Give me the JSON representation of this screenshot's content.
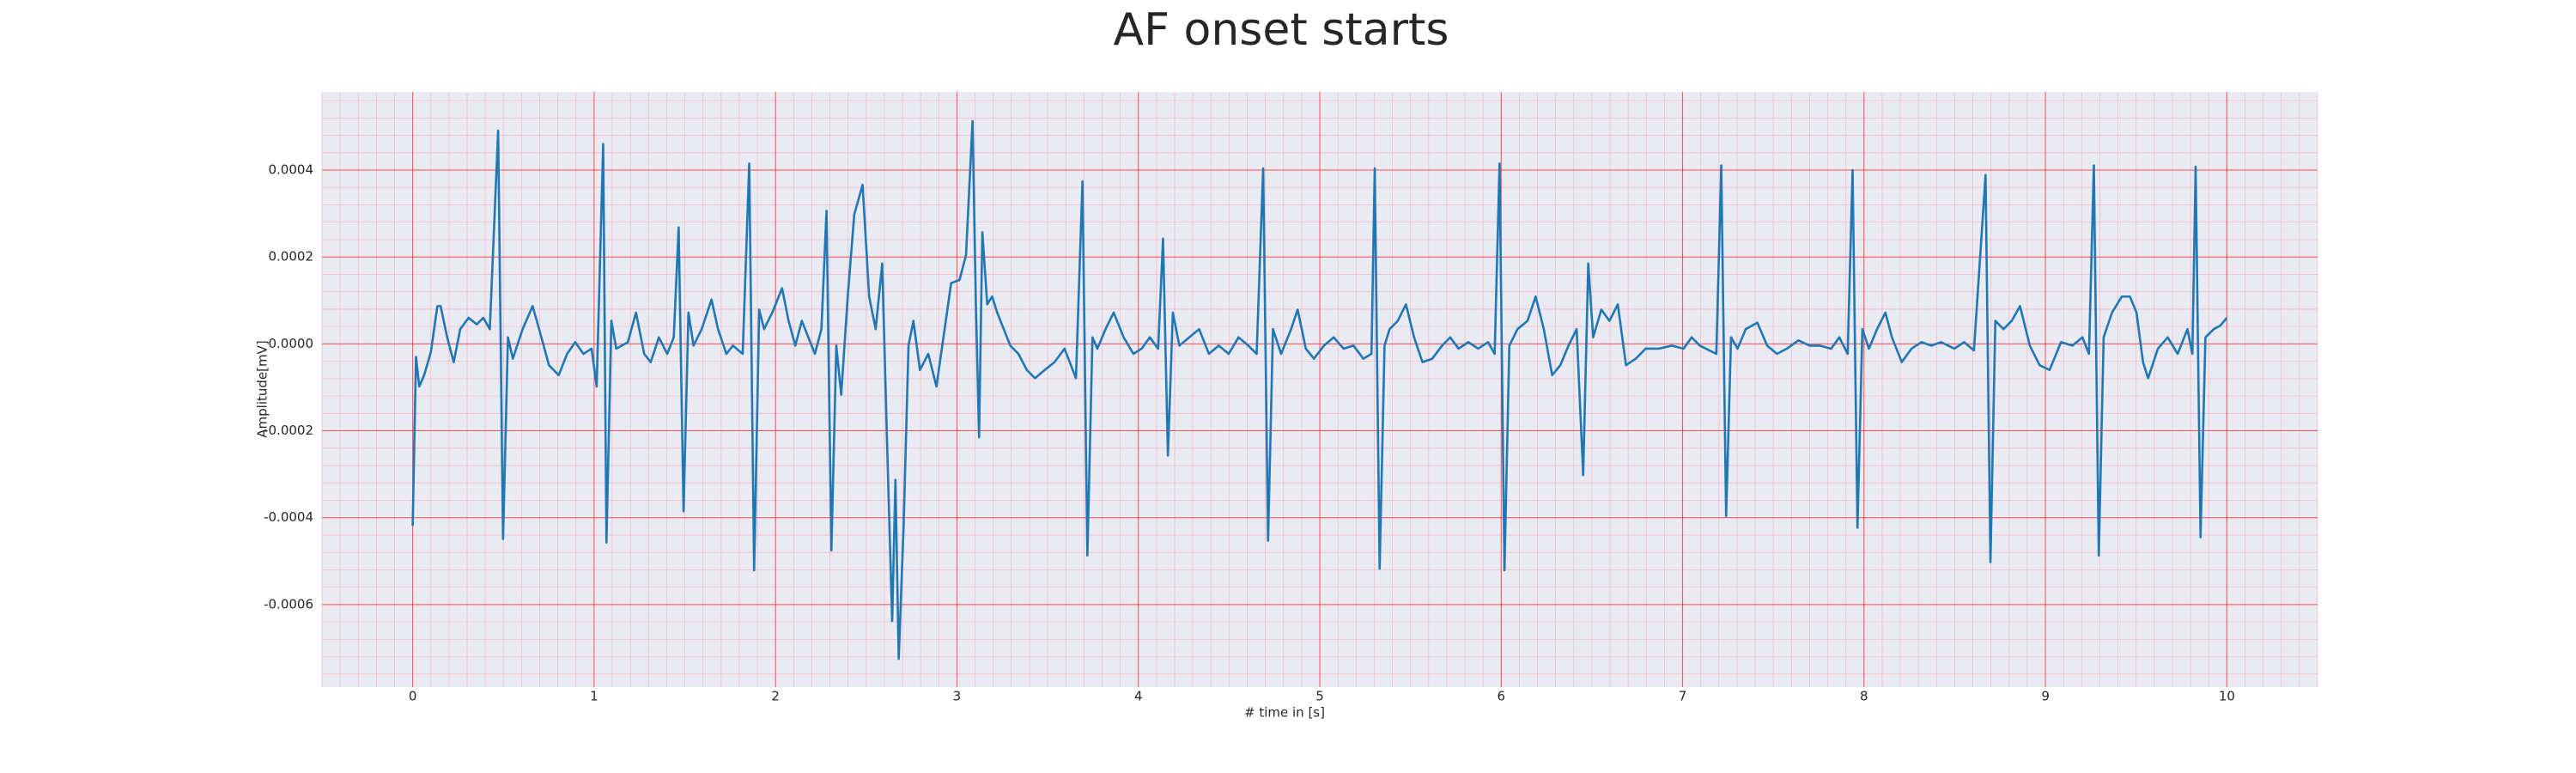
{
  "chart_data": {
    "type": "line",
    "title": "AF onset starts",
    "x_label": "# time in [s]",
    "y_label": "Amplitude[mV]",
    "color": "#1f77b4",
    "grid": true,
    "minor_grid": true,
    "grid_color": "#ff0000",
    "minor_grid_color": "#f4a6b4",
    "background": "#eaeaf2",
    "xlim": [
      -0.5,
      10.5
    ],
    "xticks": [
      0,
      1,
      2,
      3,
      4,
      5,
      6,
      7,
      8,
      9,
      10
    ],
    "ylim": [
      -0.00079,
      0.00058
    ],
    "yticks": [
      -0.0006,
      -0.0004,
      -0.0002,
      {
        "value": 0,
        "label": "0.0000"
      },
      0.0002,
      0.0004
    ],
    "x": [
      0,
      0.018,
      0.036,
      0.063,
      0.1,
      0.136,
      0.154,
      0.19,
      0.226,
      0.262,
      0.308,
      0.353,
      0.389,
      0.425,
      0.471,
      0.498,
      0.525,
      0.552,
      0.606,
      0.661,
      0.697,
      0.751,
      0.805,
      0.851,
      0.896,
      0.941,
      0.986,
      1.014,
      1.05,
      1.068,
      1.095,
      1.122,
      1.186,
      1.231,
      1.276,
      1.312,
      1.357,
      1.403,
      1.439,
      1.466,
      1.493,
      1.52,
      1.548,
      1.593,
      1.647,
      1.683,
      1.729,
      1.765,
      1.819,
      1.855,
      1.882,
      1.91,
      1.937,
      1.982,
      2.036,
      2.072,
      2.109,
      2.145,
      2.181,
      2.217,
      2.253,
      2.281,
      2.308,
      2.335,
      2.362,
      2.398,
      2.434,
      2.48,
      2.516,
      2.552,
      2.588,
      2.615,
      2.643,
      2.661,
      2.679,
      2.706,
      2.733,
      2.76,
      2.796,
      2.842,
      2.887,
      2.932,
      2.968,
      3.014,
      3.05,
      3.086,
      3.104,
      3.122,
      3.14,
      3.167,
      3.194,
      3.222,
      3.258,
      3.294,
      3.339,
      3.385,
      3.43,
      3.484,
      3.538,
      3.593,
      3.656,
      3.692,
      3.719,
      3.747,
      3.774,
      3.819,
      3.864,
      3.919,
      3.973,
      4.018,
      4.063,
      4.109,
      4.136,
      4.163,
      4.19,
      4.226,
      4.281,
      4.335,
      4.389,
      4.443,
      4.498,
      4.552,
      4.606,
      4.652,
      4.688,
      4.715,
      4.742,
      4.787,
      4.842,
      4.878,
      4.923,
      4.968,
      5.023,
      5.077,
      5.131,
      5.186,
      5.24,
      5.285,
      5.303,
      5.33,
      5.357,
      5.385,
      5.43,
      5.475,
      5.52,
      5.566,
      5.62,
      5.674,
      5.719,
      5.765,
      5.819,
      5.873,
      5.928,
      5.964,
      5.991,
      6.018,
      6.045,
      6.09,
      6.145,
      6.19,
      6.235,
      6.281,
      6.326,
      6.371,
      6.416,
      6.452,
      6.48,
      6.507,
      6.552,
      6.597,
      6.643,
      6.688,
      6.742,
      6.796,
      6.869,
      6.941,
      7.005,
      7.05,
      7.095,
      7.186,
      7.213,
      7.24,
      7.267,
      7.303,
      7.348,
      7.412,
      7.466,
      7.52,
      7.575,
      7.638,
      7.701,
      7.756,
      7.819,
      7.864,
      7.91,
      7.937,
      7.964,
      7.991,
      8.027,
      8.072,
      8.118,
      8.154,
      8.208,
      8.262,
      8.317,
      8.371,
      8.425,
      8.498,
      8.552,
      8.606,
      8.67,
      8.697,
      8.724,
      8.769,
      8.814,
      8.86,
      8.914,
      8.968,
      9.023,
      9.086,
      9.149,
      9.204,
      9.24,
      9.267,
      9.294,
      9.321,
      9.367,
      9.421,
      9.466,
      9.502,
      9.538,
      9.566,
      9.62,
      9.674,
      9.729,
      9.783,
      9.81,
      9.828,
      9.855,
      9.882,
      9.928,
      9.964,
      10
    ],
    "values": [
      -0.000419,
      -3e-05,
      -9.8e-05,
      -7.2e-05,
      -1.9e-05,
      8.7e-05,
      8.7e-05,
      1.5e-05,
      -4.2e-05,
      3.4e-05,
      6e-05,
      4.5e-05,
      6e-05,
      3.4e-05,
      0.000491,
      -0.000449,
      1.5e-05,
      -3.4e-05,
      3.4e-05,
      8.7e-05,
      3.4e-05,
      -4.9e-05,
      -7.2e-05,
      -2.3e-05,
      4e-06,
      -2.3e-05,
      -1.1e-05,
      -9.8e-05,
      0.00046,
      -0.000457,
      5.3e-05,
      -1.1e-05,
      4e-06,
      7.2e-05,
      -2.3e-05,
      -4.2e-05,
      1.5e-05,
      -2.3e-05,
      1.5e-05,
      0.000268,
      -0.000385,
      7.2e-05,
      -4e-06,
      3.4e-05,
      0.000102,
      3.4e-05,
      -2.3e-05,
      -4e-06,
      -2.3e-05,
      0.000415,
      -0.000521,
      7.9e-05,
      3.4e-05,
      7.2e-05,
      0.000128,
      5.3e-05,
      -4e-06,
      5.3e-05,
      1.5e-05,
      -2.3e-05,
      3.4e-05,
      0.000306,
      -0.000475,
      -4e-06,
      -0.000117,
      0.000109,
      0.000298,
      0.000366,
      0.000109,
      3.4e-05,
      0.000185,
      -0.00023,
      -0.000638,
      -0.000313,
      -0.000725,
      -0.000419,
      -4e-06,
      5.3e-05,
      -6e-05,
      -2.3e-05,
      -9.8e-05,
      3.4e-05,
      0.00014,
      0.000147,
      0.000204,
      0.000513,
      9.8e-05,
      -0.000215,
      0.000257,
      9.1e-05,
      0.000109,
      7.2e-05,
      3.4e-05,
      -4e-06,
      -2.3e-05,
      -6e-05,
      -7.9e-05,
      -6e-05,
      -4.2e-05,
      -1.1e-05,
      -7.9e-05,
      0.000374,
      -0.000487,
      1.5e-05,
      -1.1e-05,
      3.4e-05,
      7.2e-05,
      1.5e-05,
      -2.3e-05,
      -1.1e-05,
      1.5e-05,
      -1.1e-05,
      0.000242,
      -0.000257,
      7.2e-05,
      -4e-06,
      1.5e-05,
      3.4e-05,
      -2.3e-05,
      -4e-06,
      -2.3e-05,
      1.5e-05,
      -4e-06,
      -2.3e-05,
      0.000404,
      -0.000453,
      3.4e-05,
      -2.3e-05,
      3.4e-05,
      7.9e-05,
      -1.1e-05,
      -3.4e-05,
      -4e-06,
      1.5e-05,
      -1.1e-05,
      -4e-06,
      -3.4e-05,
      -2.3e-05,
      0.000404,
      -0.000517,
      -4e-06,
      3.4e-05,
      5.3e-05,
      9.1e-05,
      1.5e-05,
      -4.2e-05,
      -3.4e-05,
      -4e-06,
      1.5e-05,
      -1.1e-05,
      4e-06,
      -1.1e-05,
      4e-06,
      -2.3e-05,
      0.000415,
      -0.000521,
      -4e-06,
      3.4e-05,
      5.3e-05,
      0.000109,
      3.4e-05,
      -7.2e-05,
      -4.9e-05,
      -4e-06,
      3.4e-05,
      -0.000302,
      0.000185,
      1.5e-05,
      7.9e-05,
      5.3e-05,
      9.1e-05,
      -4.9e-05,
      -3.4e-05,
      -1.1e-05,
      -1.1e-05,
      -4e-06,
      -1.1e-05,
      1.5e-05,
      -4e-06,
      -2.3e-05,
      0.000411,
      -0.000396,
      1.5e-05,
      -1.1e-05,
      3.4e-05,
      4.9e-05,
      -4e-06,
      -2.3e-05,
      -1.1e-05,
      8e-06,
      -4e-06,
      -4e-06,
      -1.1e-05,
      1.5e-05,
      -2.3e-05,
      0.0004,
      -0.000423,
      3.4e-05,
      -1.1e-05,
      3.4e-05,
      7.2e-05,
      1.5e-05,
      -4.2e-05,
      -1.1e-05,
      4e-06,
      -4e-06,
      4e-06,
      -1.1e-05,
      4e-06,
      -1.5e-05,
      0.000389,
      -0.000502,
      5.3e-05,
      3.4e-05,
      5.3e-05,
      8.7e-05,
      -4e-06,
      -4.9e-05,
      -6e-05,
      4e-06,
      -4e-06,
      1.5e-05,
      -2.3e-05,
      0.000411,
      -0.000487,
      1.5e-05,
      7.2e-05,
      0.000109,
      0.000109,
      7.2e-05,
      -4.2e-05,
      -7.9e-05,
      -1.1e-05,
      1.5e-05,
      -2.3e-05,
      3.4e-05,
      -2.3e-05,
      0.000408,
      -0.000445,
      1.5e-05,
      3.4e-05,
      4.2e-05,
      6e-05
    ]
  }
}
